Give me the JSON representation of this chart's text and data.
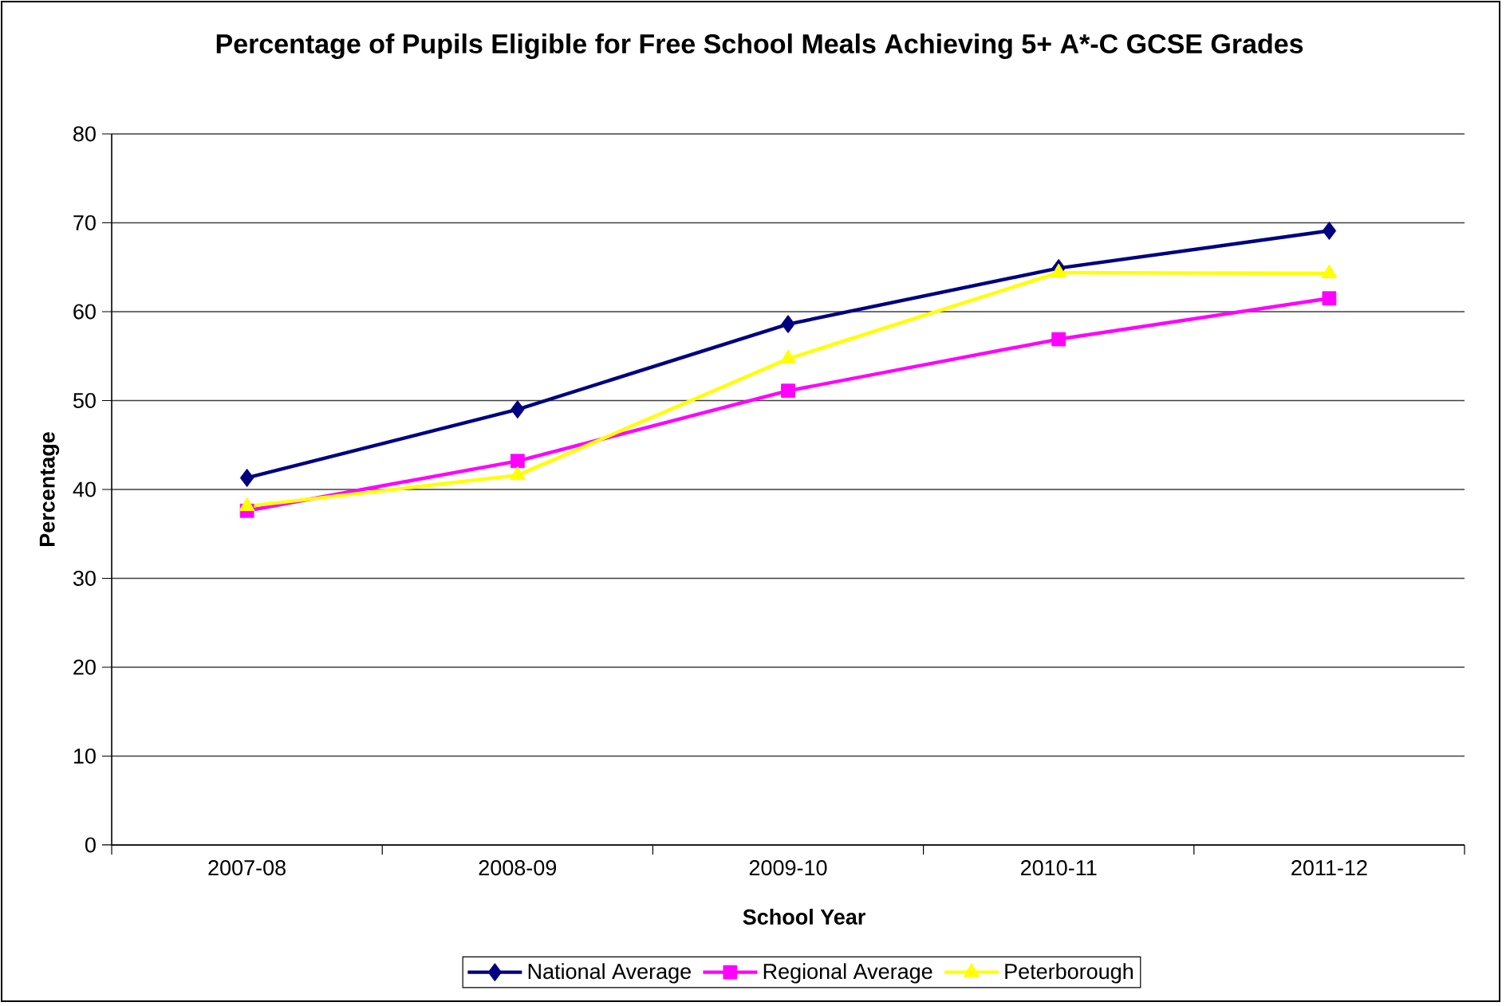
{
  "chart_data": {
    "type": "line",
    "title": "Percentage of Pupils Eligible for Free School Meals Achieving 5+ A*-C GCSE Grades",
    "xlabel": "School Year",
    "ylabel": "Percentage",
    "categories": [
      "2007-08",
      "2008-09",
      "2009-10",
      "2010-11",
      "2011-12"
    ],
    "series": [
      {
        "name": "National Average",
        "color": "#000080",
        "marker": "diamond",
        "values": [
          41.3,
          49.0,
          58.6,
          64.9,
          69.1
        ]
      },
      {
        "name": "Regional Average",
        "color": "#ff00ff",
        "marker": "square",
        "values": [
          37.6,
          43.2,
          51.1,
          56.9,
          61.5
        ]
      },
      {
        "name": "Peterborough",
        "color": "#ffff00",
        "marker": "triangle",
        "values": [
          38.1,
          41.6,
          54.7,
          64.4,
          64.3
        ]
      }
    ],
    "ylim": [
      0,
      80
    ],
    "yticks": [
      0,
      10,
      20,
      30,
      40,
      50,
      60,
      70,
      80
    ],
    "grid": "y",
    "legend": "bottom"
  }
}
